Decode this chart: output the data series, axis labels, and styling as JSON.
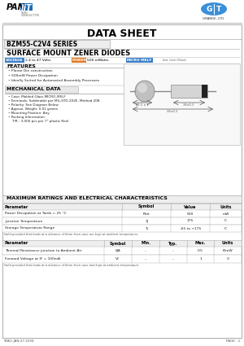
{
  "title": "DATA SHEET",
  "series_title": "BZM55-C2V4 SERIES",
  "subtitle": "SURFACE MOUNT ZENER DIODES",
  "voltage_label": "VOLTAGE",
  "voltage_value": "2.4 to 47 Volts",
  "power_label": "POWER",
  "power_value": "500 mWatts",
  "package_label": "MICRO-MELF",
  "features_title": "FEATURES",
  "features": [
    "Planar Die construction",
    "500mW Power Dissipation",
    "Ideally Suited for Automated Assembly Processes"
  ],
  "mech_title": "MECHANICAL DATA",
  "mech_items": [
    "Case: Molded Glass MICRO-MELF",
    "Terminals: Solderable per MIL-STD-202E, Method 208",
    "Polarity: See Diagram Below",
    "Approx. Weight: 0.01 grams",
    "Mounting Position: Any",
    "Packing Information:",
    "  T/R : 3,000 pcs per 7\" plastic Reel"
  ],
  "max_ratings_title": "MAXIMUM RATINGS AND ELECTRICAL CHARACTERISTICS",
  "table1_headers": [
    "Parameter",
    "Symbol",
    "Value",
    "Units"
  ],
  "table1_rows": [
    [
      "Power Dissipation at Tamb = 25 °C",
      "Ptot",
      "500",
      "mW"
    ],
    [
      "Junction Temperature",
      "TJ",
      "175",
      "°C"
    ],
    [
      "Storage Temperature Range",
      "Ts",
      "-65 to +175",
      "°C"
    ]
  ],
  "table1_note": "Valid provided that leads at a distance of 6mm from case are kept at ambient temperature.",
  "table2_headers": [
    "Parameter",
    "Symbol",
    "Min.",
    "Typ.",
    "Max.",
    "Units"
  ],
  "table2_rows": [
    [
      "Thermal Resistance junction to Ambient Air",
      "θJA",
      "–",
      "–",
      "0.5",
      "K/mW"
    ],
    [
      "Forward Voltage at IF = 100mA",
      "VF",
      "–",
      "–",
      "1",
      "V"
    ]
  ],
  "table2_note": "Valid provided that leads at a distance of 6mm from case and kept at ambient temperature.",
  "footer_left": "STAO-JAN.27.2004",
  "footer_right": "PAGE : 1",
  "bg_color": "#ffffff",
  "panjit_blue": "#1a6dba",
  "label_blue": "#3a7fc8",
  "label_orange": "#e07820",
  "grande_blue": "#3a8fd8",
  "table_header_bg": "#f0f0f0",
  "content_box_bg": "#f5f5f5",
  "mech_box_bg": "#e8e8e8"
}
